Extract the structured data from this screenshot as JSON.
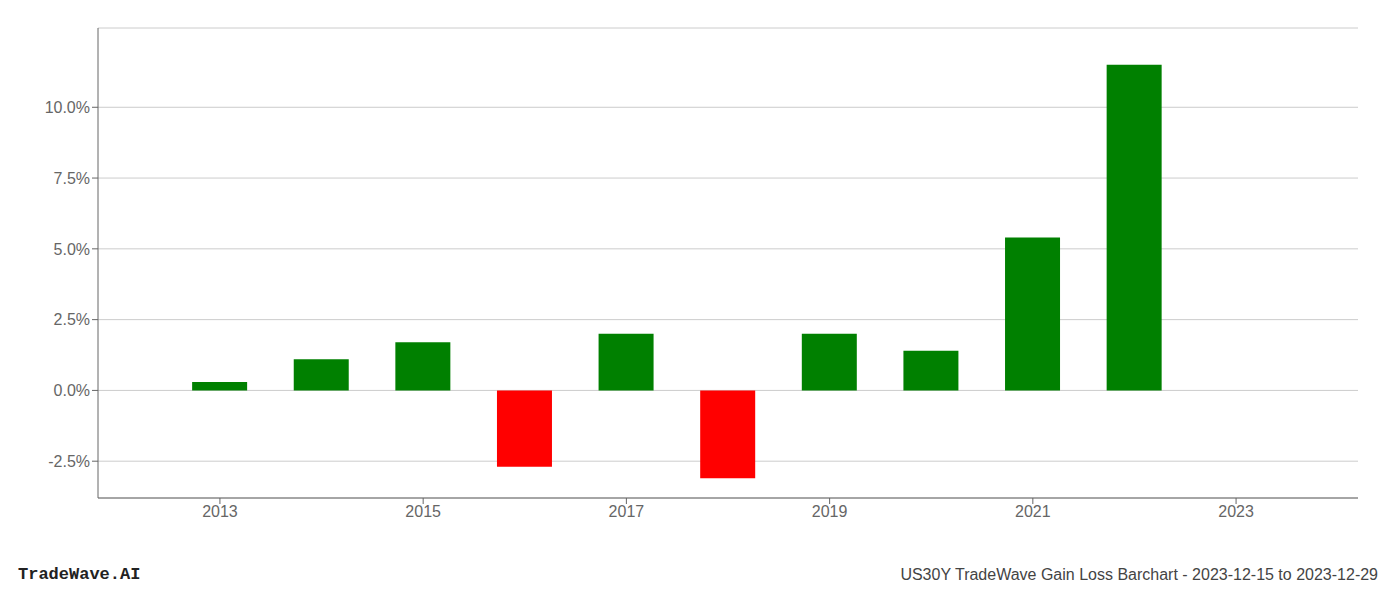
{
  "chart_data": {
    "type": "bar",
    "title": "US30Y TradeWave Gain Loss Barchart - 2023-12-15 to 2023-12-29",
    "annotations": [
      "TradeWave.AI"
    ],
    "x": [
      2013,
      2014,
      2015,
      2016,
      2017,
      2018,
      2019,
      2020,
      2021,
      2022
    ],
    "values": [
      0.003,
      0.011,
      0.017,
      -0.027,
      0.02,
      -0.031,
      0.02,
      0.014,
      0.054,
      0.115
    ],
    "colors": [
      "#008000",
      "#008000",
      "#008000",
      "#ff0000",
      "#008000",
      "#ff0000",
      "#008000",
      "#008000",
      "#008000",
      "#008000"
    ],
    "xlim": [
      2011.8,
      2024.2
    ],
    "xticks": [
      2013,
      2015,
      2017,
      2019,
      2021,
      2023
    ],
    "ylim": [
      -0.038,
      0.128
    ],
    "yticks": [
      {
        "value": -0.025,
        "label": "-2.5%"
      },
      {
        "value": 0.0,
        "label": "0.0%"
      },
      {
        "value": 0.025,
        "label": "2.5%"
      },
      {
        "value": 0.05,
        "label": "5.0%"
      },
      {
        "value": 0.075,
        "label": "7.5%"
      },
      {
        "value": 0.1,
        "label": "10.0%"
      }
    ],
    "grid": true
  }
}
